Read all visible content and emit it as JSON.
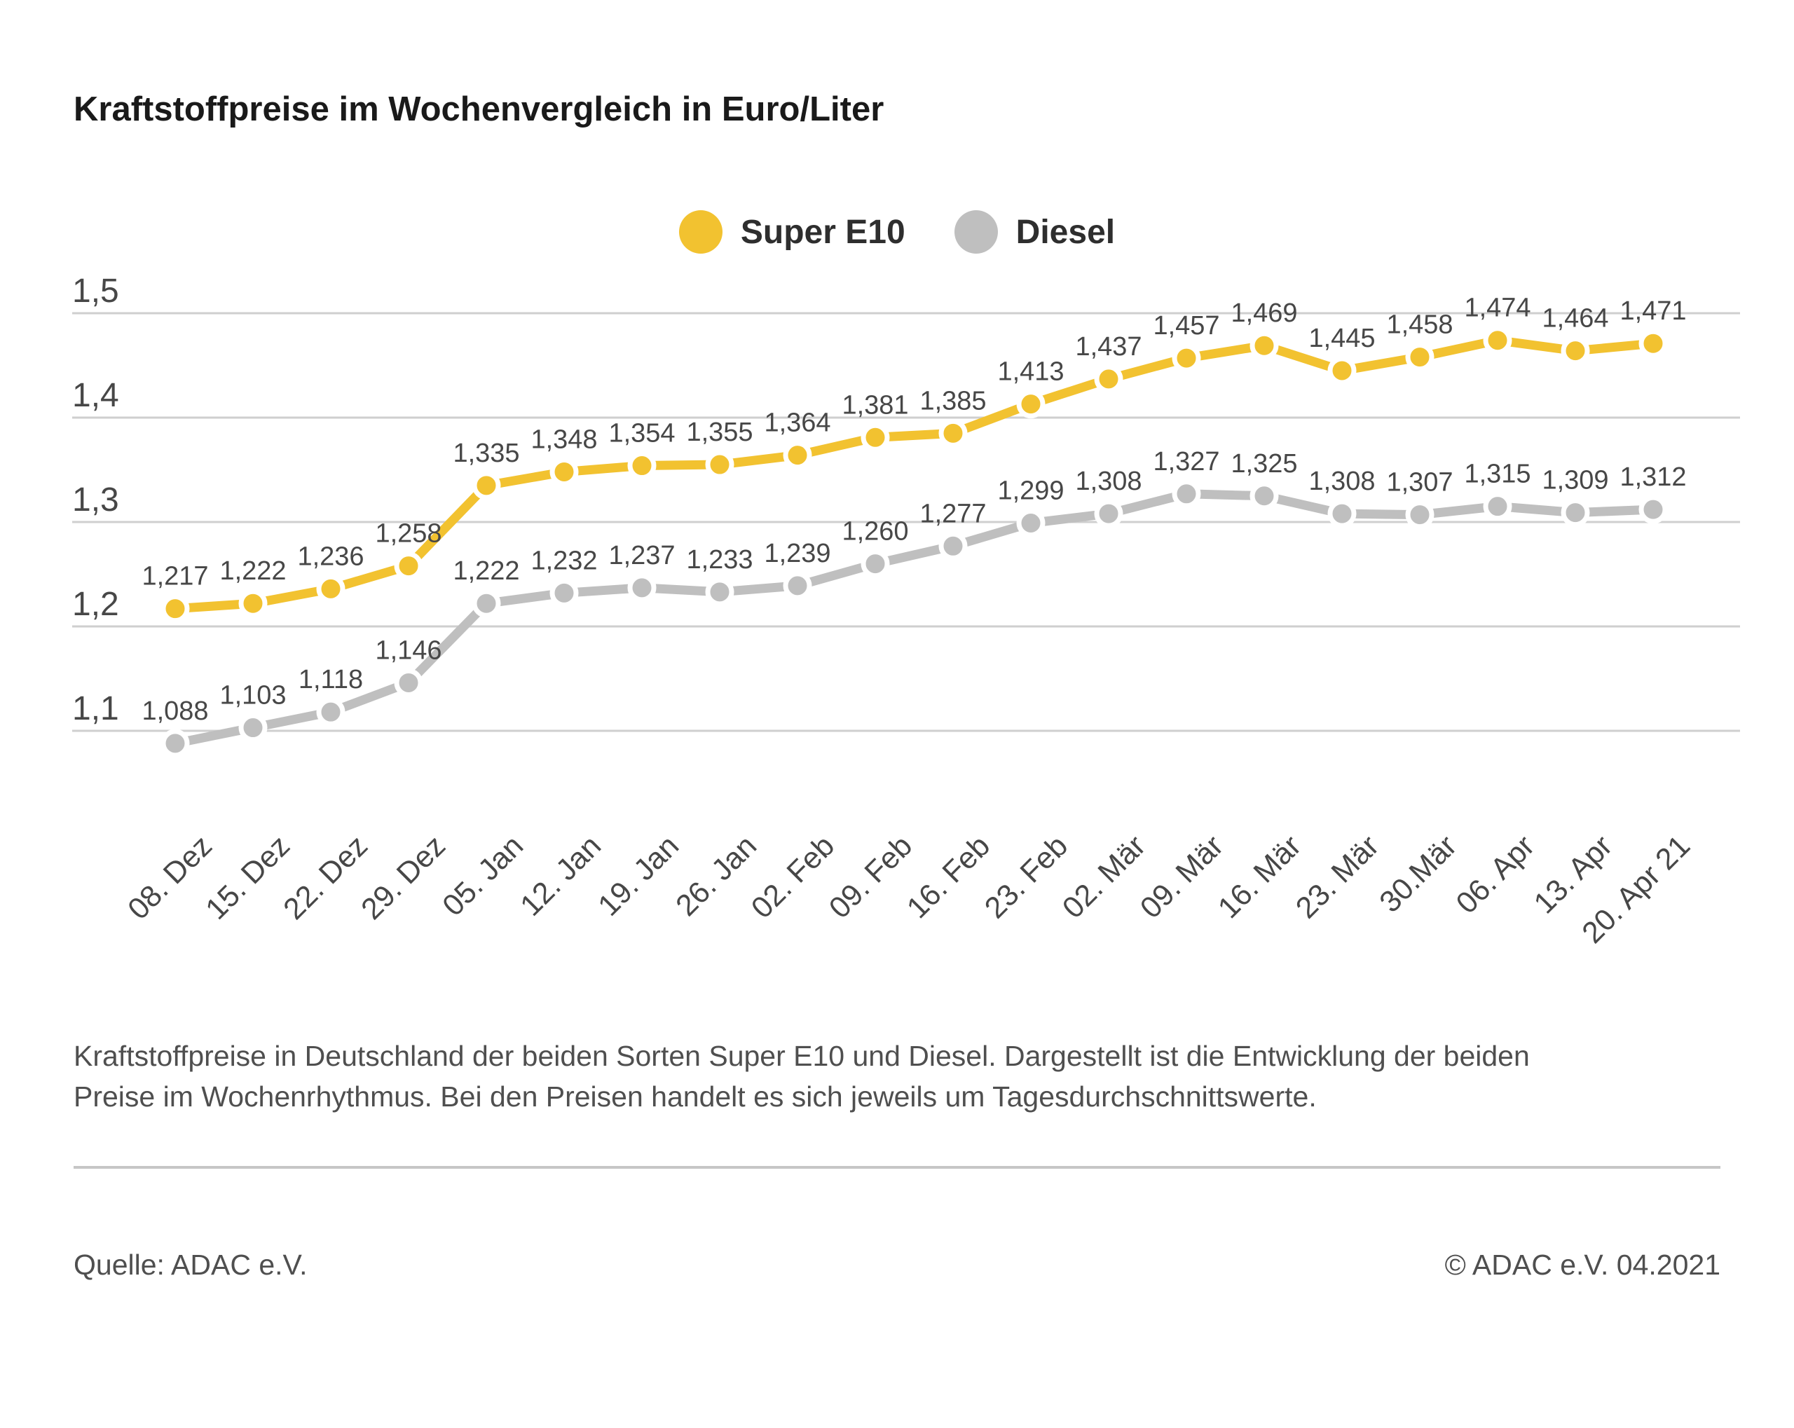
{
  "page": {
    "title": "Kraftstoffpreise im Wochenvergleich in Euro/Liter",
    "description": "Kraftstoffpreise in Deutschland der beiden Sorten Super E10 und Diesel. Dargestellt ist die Entwicklung der beiden Preise im Wochenrhythmus. Bei den Preisen handelt es sich jeweils um Tagesdurchschnittswerte.",
    "source_left": "Quelle: ADAC e.V.",
    "source_right": "© ADAC e.V. 04.2021"
  },
  "chart_data": {
    "type": "line",
    "title": "Kraftstoffpreise im Wochenvergleich in Euro/Liter",
    "unit": "Euro/Liter",
    "categories": [
      "08. Dez",
      "15. Dez",
      "22. Dez",
      "29. Dez",
      "05. Jan",
      "12. Jan",
      "19. Jan",
      "26. Jan",
      "02. Feb",
      "09. Feb",
      "16. Feb",
      "23. Feb",
      "02. Mär",
      "09. Mär",
      "16. Mär",
      "23. Mär",
      "30.Mär",
      "06. Apr",
      "13. Apr",
      "20. Apr 21"
    ],
    "series": [
      {
        "name": "Super E10",
        "color": "#F2C230",
        "values": [
          1.217,
          1.222,
          1.236,
          1.258,
          1.335,
          1.348,
          1.354,
          1.355,
          1.364,
          1.381,
          1.385,
          1.413,
          1.437,
          1.457,
          1.469,
          1.445,
          1.458,
          1.474,
          1.464,
          1.471
        ]
      },
      {
        "name": "Diesel",
        "color": "#BFBFBF",
        "values": [
          1.088,
          1.103,
          1.118,
          1.146,
          1.222,
          1.232,
          1.237,
          1.233,
          1.239,
          1.26,
          1.277,
          1.299,
          1.308,
          1.327,
          1.325,
          1.308,
          1.307,
          1.315,
          1.309,
          1.312
        ]
      }
    ],
    "value_label_format": "decimal-comma-3",
    "y_ticks": [
      1.5,
      1.4,
      1.3,
      1.2,
      1.1
    ],
    "y_tick_labels": [
      "1,5",
      "1,4",
      "1,3",
      "1,2",
      "1,1"
    ],
    "ylim": [
      1.05,
      1.52
    ],
    "grid": "horizontal",
    "legend_position": "top-center",
    "colors": {
      "grid_line": "#cfcfcf",
      "tick_text": "#474747",
      "value_label_text": "#474747"
    }
  }
}
